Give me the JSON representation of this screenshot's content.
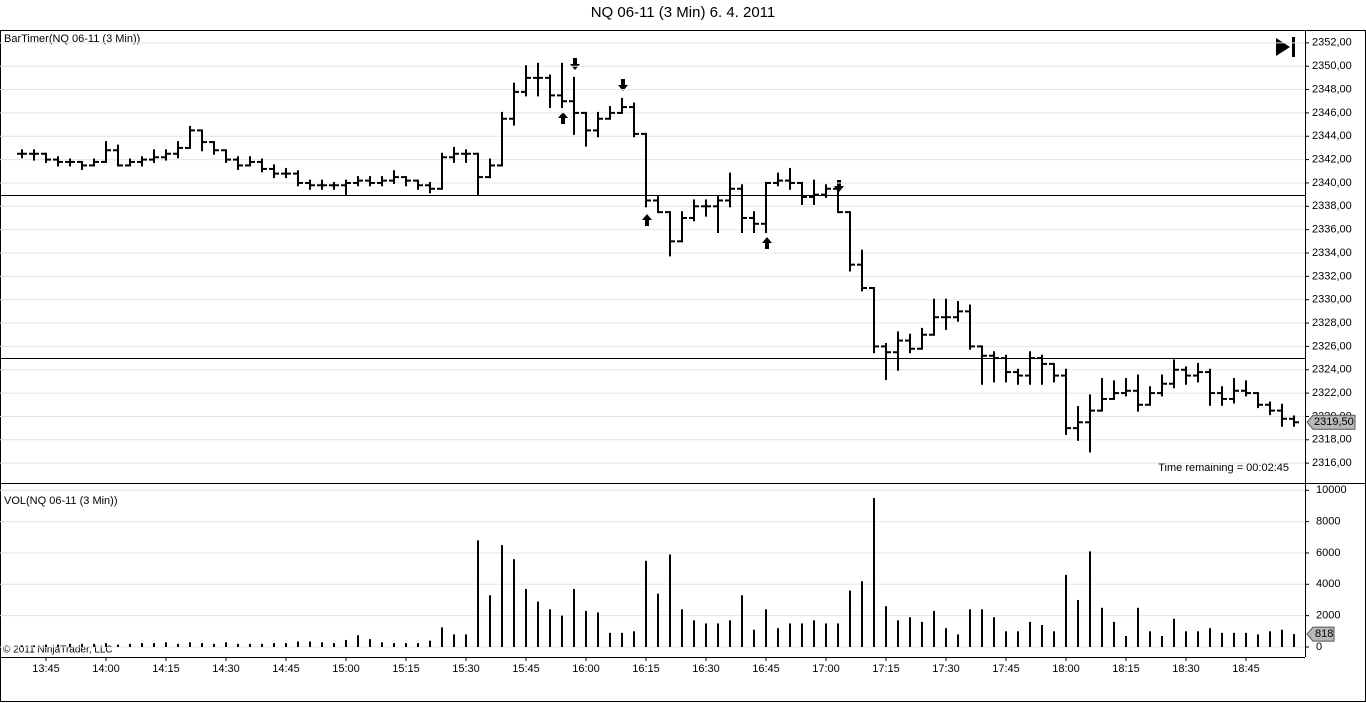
{
  "title": "NQ 06-11 (3 Min)  6. 4. 2011",
  "footer": "© 2011 NinjaTrader, LLC",
  "chart_data": {
    "type": "ohlc",
    "label": "BarTimer(NQ 06-11 (3 Min))",
    "annotation": "Time remaining = 00:02:45",
    "categories": [
      null,
      null,
      "13:45",
      null,
      null,
      null,
      null,
      "14:00",
      null,
      null,
      null,
      null,
      "14:15",
      null,
      null,
      null,
      null,
      "14:30",
      null,
      null,
      null,
      null,
      "14:45",
      null,
      null,
      null,
      null,
      "15:00",
      null,
      null,
      null,
      null,
      "15:15",
      null,
      null,
      null,
      null,
      "15:30",
      null,
      null,
      null,
      null,
      "15:45",
      null,
      null,
      null,
      null,
      "16:00",
      null,
      null,
      null,
      null,
      "16:15",
      null,
      null,
      null,
      null,
      "16:30",
      null,
      null,
      null,
      null,
      "16:45",
      null,
      null,
      null,
      null,
      "17:00",
      null,
      null,
      null,
      null,
      "17:15",
      null,
      null,
      null,
      null,
      "17:30",
      null,
      null,
      null,
      null,
      "17:45",
      null,
      null,
      null,
      null,
      "18:00",
      null,
      null,
      null,
      null,
      "18:15",
      null,
      null,
      null,
      null,
      "18:30",
      null,
      null,
      null,
      null,
      "18:45",
      null,
      null,
      null,
      null
    ],
    "open": [
      2342.5,
      2342.5,
      2342.5,
      2342,
      2341.8,
      2341.8,
      2341.5,
      2341.8,
      2342.8,
      2341.5,
      2341.8,
      2342,
      2342.2,
      2342.5,
      2343,
      2344.5,
      2343.5,
      2342.8,
      2342,
      2341.5,
      2341.8,
      2341.2,
      2340.8,
      2340.8,
      2340,
      2339.8,
      2339.8,
      2339.8,
      2340,
      2340.2,
      2340,
      2340.2,
      2340.5,
      2340.2,
      2339.8,
      2339.5,
      2342.2,
      2342.5,
      2342.5,
      2340.5,
      2341.5,
      2345.5,
      2347.8,
      2349,
      2349,
      2347.5,
      2347,
      2346,
      2344.5,
      2345.5,
      2346,
      2346.5,
      2344.2,
      2338.5,
      2337.5,
      2335,
      2337,
      2338,
      2338,
      2338.5,
      2339.5,
      2337,
      2336.5,
      2340,
      2340.2,
      2340,
      2338.8,
      2339,
      2339.5,
      2337.5,
      2333,
      2331,
      2326,
      2325.5,
      2326.5,
      2325.8,
      2327,
      2328.5,
      2328.5,
      2329,
      2326,
      2325.2,
      2325,
      2323.8,
      2323.5,
      2325,
      2324.5,
      2323.5,
      2319,
      2319.5,
      2320.5,
      2321.5,
      2322,
      2322.2,
      2321,
      2322,
      2322.8,
      2324,
      2323.5,
      2323.8,
      2322,
      2321.5,
      2322.2,
      2322,
      2321,
      2320.5,
      2319.8
    ],
    "high": [
      2342.8,
      2342.8,
      2342.5,
      2342.2,
      2342,
      2341.8,
      2342,
      2343.5,
      2343.2,
      2342,
      2342.2,
      2342.8,
      2342.8,
      2343.5,
      2344.8,
      2344.5,
      2343.5,
      2342.8,
      2342.2,
      2342.2,
      2342,
      2341.5,
      2341.2,
      2341,
      2340.2,
      2340.2,
      2340,
      2340.2,
      2340.5,
      2340.5,
      2340.5,
      2341,
      2340.5,
      2340.2,
      2340,
      2342.5,
      2343,
      2342.8,
      2342.5,
      2342,
      2346,
      2348.5,
      2350,
      2350.2,
      2349.2,
      2350.2,
      2349,
      2346,
      2346,
      2346.5,
      2347.2,
      2346.8,
      2344.2,
      2338.8,
      2337.5,
      2337.5,
      2338.5,
      2338.5,
      2338.8,
      2340.8,
      2339.8,
      2337.5,
      2340,
      2340.8,
      2341.2,
      2340,
      2340.2,
      2339.8,
      2339.5,
      2337.5,
      2334.2,
      2331,
      2326.2,
      2327.2,
      2327,
      2327.5,
      2330,
      2330,
      2329.8,
      2329.5,
      2326,
      2325.5,
      2325.2,
      2324,
      2325.5,
      2325.2,
      2324.5,
      2324,
      2320.8,
      2321.8,
      2323.2,
      2323,
      2323.2,
      2323.5,
      2322.5,
      2323.5,
      2324.8,
      2324.2,
      2324.5,
      2324,
      2322.5,
      2323.2,
      2323,
      2322,
      2321.2,
      2321,
      2320
    ],
    "low": [
      2342.2,
      2342,
      2341.8,
      2341.5,
      2341.5,
      2341.2,
      2341.5,
      2341.8,
      2341.5,
      2341.5,
      2341.5,
      2341.8,
      2342,
      2342.2,
      2343,
      2342.8,
      2342.5,
      2341.8,
      2341.2,
      2341.5,
      2341,
      2340.5,
      2340.5,
      2339.8,
      2339.5,
      2339.5,
      2339.5,
      2339,
      2339.8,
      2339.8,
      2339.8,
      2340,
      2339.8,
      2339.5,
      2339.2,
      2339.5,
      2341.8,
      2341.8,
      2339,
      2340.5,
      2341.5,
      2345,
      2347.5,
      2347.5,
      2346.5,
      2346.5,
      2344.2,
      2343.2,
      2344,
      2345.5,
      2346,
      2344,
      2338,
      2337.5,
      2333.8,
      2335,
      2336.8,
      2337.2,
      2335.8,
      2338,
      2335.8,
      2335.8,
      2335.8,
      2339.8,
      2339.5,
      2338.2,
      2338.2,
      2338.8,
      2337.5,
      2332.5,
      2330.8,
      2325.5,
      2323.2,
      2324,
      2325.5,
      2325.8,
      2327,
      2327.5,
      2328.2,
      2325.8,
      2322.8,
      2323,
      2323,
      2322.8,
      2322.8,
      2322.8,
      2323,
      2318.5,
      2318,
      2317,
      2320.5,
      2321.5,
      2321.8,
      2320.5,
      2321,
      2321.8,
      2322.5,
      2322.8,
      2323,
      2321,
      2321,
      2321.2,
      2321.8,
      2320.8,
      2320.2,
      2319.2,
      2319.2
    ],
    "close": [
      2342.5,
      2342.5,
      2342,
      2341.8,
      2341.8,
      2341.5,
      2341.8,
      2342.8,
      2341.5,
      2341.8,
      2342,
      2342.2,
      2342.5,
      2343,
      2344.5,
      2343.5,
      2342.8,
      2342,
      2341.5,
      2341.8,
      2341.2,
      2340.8,
      2340.8,
      2340,
      2339.8,
      2339.8,
      2339.8,
      2340,
      2340.2,
      2340,
      2340.2,
      2340.5,
      2340.2,
      2339.8,
      2339.5,
      2342.2,
      2342.5,
      2342.5,
      2340.5,
      2341.5,
      2345.5,
      2347.8,
      2349,
      2349,
      2347.5,
      2347,
      2346,
      2344.5,
      2345.5,
      2346,
      2346.5,
      2344.2,
      2338.5,
      2337.5,
      2335,
      2337,
      2338,
      2338,
      2338.5,
      2339.5,
      2337,
      2336.5,
      2340,
      2340.2,
      2340,
      2338.8,
      2339,
      2339.5,
      2337.5,
      2333,
      2331,
      2326,
      2325.5,
      2326.5,
      2325.8,
      2327,
      2328.5,
      2328.5,
      2329,
      2326,
      2325.2,
      2325,
      2323.8,
      2323.5,
      2325,
      2324.5,
      2323.5,
      2319,
      2319.5,
      2320.5,
      2321.5,
      2322,
      2322.2,
      2321,
      2322,
      2322.8,
      2324,
      2323.5,
      2323.8,
      2322,
      2321.5,
      2322.2,
      2322,
      2321,
      2320.5,
      2319.8,
      2319.5
    ],
    "color": "#000000",
    "ylim": [
      2314.3,
      2353.1
    ],
    "yticks": [
      {
        "value": 2316,
        "label": "2316,00"
      },
      {
        "value": 2318,
        "label": "2318,00"
      },
      {
        "value": 2320,
        "label": "2320,00"
      },
      {
        "value": 2322,
        "label": "2322,00"
      },
      {
        "value": 2324,
        "label": "2324,00"
      },
      {
        "value": 2326,
        "label": "2326,00"
      },
      {
        "value": 2328,
        "label": "2328,00"
      },
      {
        "value": 2330,
        "label": "2330,00"
      },
      {
        "value": 2332,
        "label": "2332,00"
      },
      {
        "value": 2334,
        "label": "2334,00"
      },
      {
        "value": 2336,
        "label": "2336,00"
      },
      {
        "value": 2338,
        "label": "2338,00"
      },
      {
        "value": 2340,
        "label": "2340,00"
      },
      {
        "value": 2342,
        "label": "2342,00"
      },
      {
        "value": 2344,
        "label": "2344,00"
      },
      {
        "value": 2346,
        "label": "2346,00"
      },
      {
        "value": 2348,
        "label": "2348,00"
      },
      {
        "value": 2350,
        "label": "2350,00"
      },
      {
        "value": 2352,
        "label": "2352,00"
      }
    ],
    "hlines": [
      2339,
      2325
    ],
    "last_price": {
      "value": 2319.5,
      "label": "2319,50"
    },
    "grid": true,
    "volume": {
      "label": "VOL(NQ 06-11 (3 Min))",
      "values": [
        100,
        100,
        150,
        150,
        200,
        200,
        200,
        250,
        150,
        200,
        250,
        250,
        300,
        200,
        300,
        250,
        200,
        300,
        200,
        200,
        200,
        250,
        250,
        350,
        350,
        300,
        250,
        450,
        750,
        500,
        300,
        250,
        250,
        250,
        400,
        1250,
        800,
        800,
        6800,
        3300,
        6500,
        5600,
        3700,
        2900,
        2400,
        2000,
        3700,
        2300,
        2200,
        900,
        900,
        1000,
        5500,
        3400,
        5900,
        2400,
        1700,
        1500,
        1500,
        1700,
        3300,
        1100,
        2400,
        1200,
        1500,
        1500,
        1700,
        1500,
        1500,
        3600,
        4200,
        9500,
        2600,
        1700,
        1900,
        1600,
        2300,
        1200,
        800,
        2400,
        2400,
        1900,
        1000,
        1000,
        1600,
        1400,
        1000,
        4600,
        3000,
        6100,
        2500,
        1600,
        700,
        2500,
        1000,
        700,
        1800,
        1000,
        1000,
        1200,
        900,
        900,
        900,
        800,
        1000,
        1100,
        818
      ],
      "ylim": [
        -640,
        10400
      ],
      "yticks": [
        0,
        2000,
        4000,
        6000,
        8000,
        10000
      ]
    }
  }
}
